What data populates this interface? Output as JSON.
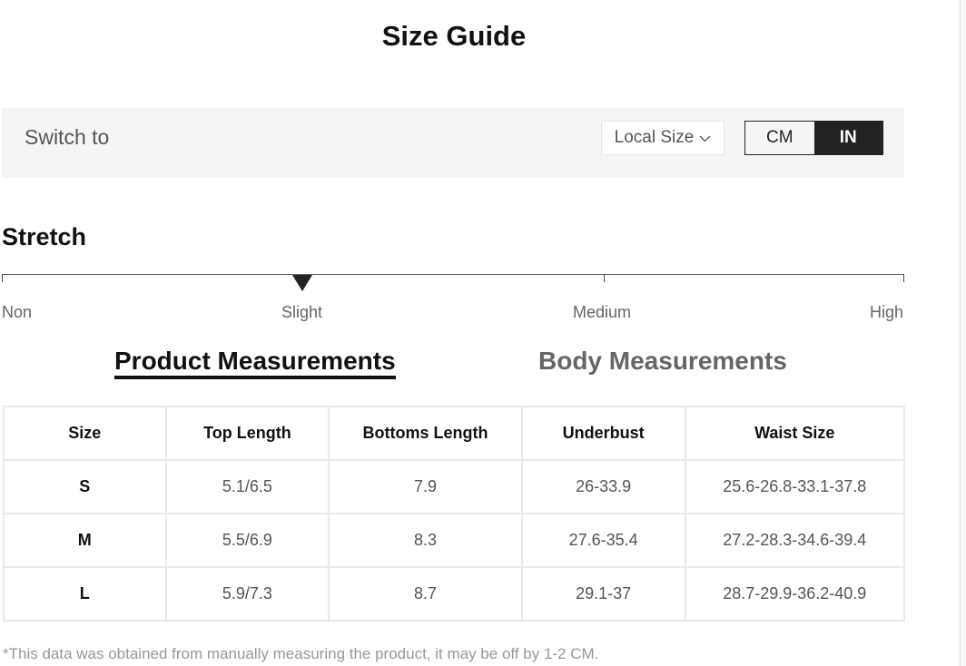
{
  "title": "Size Guide",
  "switch": {
    "label": "Switch to",
    "dropdown": "Local Size",
    "units": [
      "CM",
      "IN"
    ],
    "active_unit": "IN"
  },
  "stretch": {
    "heading": "Stretch",
    "levels": [
      "Non",
      "Slight",
      "Medium",
      "High"
    ],
    "selected": "Slight"
  },
  "tabs": [
    {
      "label": "Product Measurements",
      "active": true
    },
    {
      "label": "Body Measurements",
      "active": false
    }
  ],
  "table": {
    "headers": [
      "Size",
      "Top Length",
      "Bottoms Length",
      "Underbust",
      "Waist Size"
    ],
    "rows": [
      [
        "S",
        "5.1/6.5",
        "7.9",
        "26-33.9",
        "25.6-26.8-33.1-37.8"
      ],
      [
        "M",
        "5.5/6.9",
        "8.3",
        "27.6-35.4",
        "27.2-28.3-34.6-39.4"
      ],
      [
        "L",
        "5.9/7.3",
        "8.7",
        "29.1-37",
        "28.7-29.9-36.2-40.9"
      ]
    ]
  },
  "note": "*This data was obtained from manually measuring the product, it may be off by 1-2 CM."
}
